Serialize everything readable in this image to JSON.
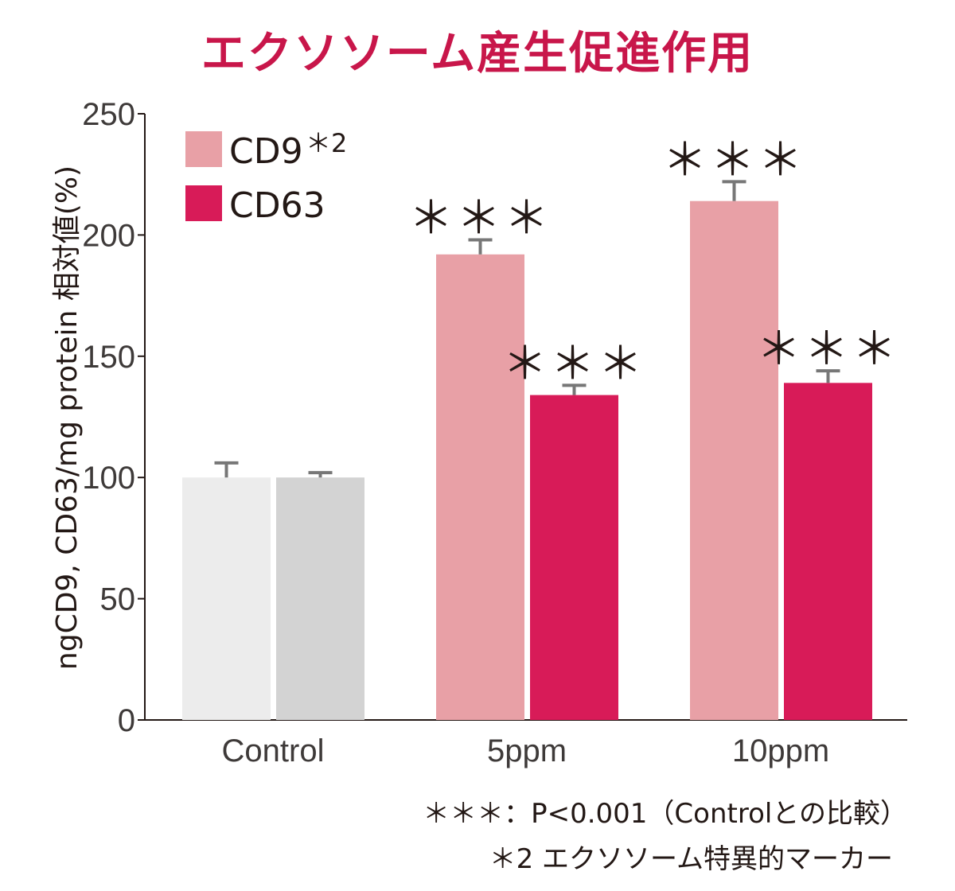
{
  "chart_data": {
    "type": "bar",
    "title": "エクソソーム産生促進作用",
    "ylabel": "ngCD9, CD63/mg protein 相対値(%)",
    "xlabel": "",
    "ylim": [
      0,
      250
    ],
    "yticks": [
      0,
      50,
      100,
      150,
      200,
      250
    ],
    "categories": [
      "Control",
      "5ppm",
      "10ppm"
    ],
    "series": [
      {
        "name": "CD9",
        "legend_label": "CD9",
        "legend_sup": "*2",
        "color": "#e8a0a6",
        "values": [
          100,
          192,
          214
        ],
        "errors": [
          6,
          6,
          8
        ],
        "bar_colors": [
          "#ececec",
          "#e8a0a6",
          "#e8a0a6"
        ],
        "significance": [
          "",
          "***",
          "***"
        ]
      },
      {
        "name": "CD63",
        "legend_label": "CD63",
        "color": "#d81b58",
        "values": [
          100,
          134,
          139
        ],
        "errors": [
          2,
          4,
          5
        ],
        "bar_colors": [
          "#d3d3d3",
          "#d81b58",
          "#d81b58"
        ],
        "significance": [
          "",
          "***",
          "***"
        ]
      }
    ],
    "legend_position": "top-left",
    "grid": false,
    "notes": [
      "＊＊＊：P<0.001（Controlとの比較）",
      "＊2 エクソソーム特異的マーカー"
    ]
  },
  "colors": {
    "title": "#c8164a",
    "axis": "#231815",
    "error": "#777777"
  }
}
